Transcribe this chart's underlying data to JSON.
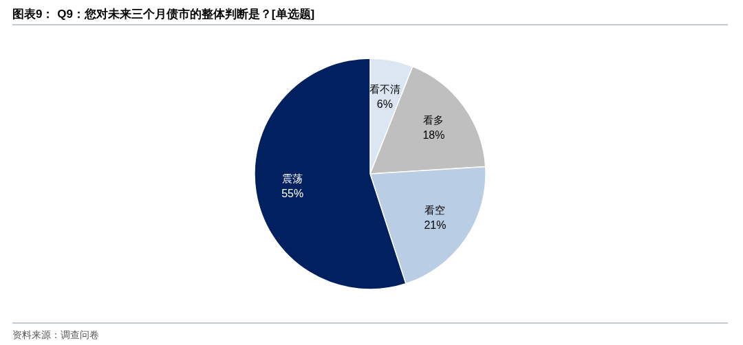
{
  "chart_data": {
    "type": "pie",
    "title": "图表9： Q9：您对未来三个月债市的整体判断是？[单选题]",
    "categories": [
      "看不清",
      "看多",
      "看空",
      "震荡"
    ],
    "values": [
      6,
      18,
      21,
      55
    ],
    "colors": [
      "#dce6f2",
      "#bfbfbf",
      "#b9cde5",
      "#002060"
    ],
    "value_labels": [
      "6%",
      "18%",
      "21%",
      "55%"
    ],
    "annotations": [
      "资料来源：调查问卷"
    ]
  }
}
